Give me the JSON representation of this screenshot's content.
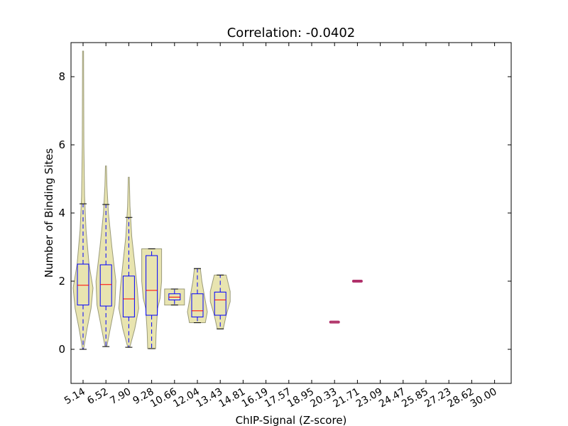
{
  "chart_data": {
    "type": "violin-box",
    "title": "Correlation: -0.0402",
    "xlabel": "ChIP-Signal (Z-score)",
    "ylabel": "Number of Binding Sites",
    "categories": [
      "5.14",
      "6.52",
      "7.90",
      "9.28",
      "10.66",
      "12.04",
      "13.43",
      "14.81",
      "16.19",
      "17.57",
      "18.95",
      "20.33",
      "21.71",
      "23.09",
      "24.47",
      "25.85",
      "27.23",
      "28.62",
      "30.00"
    ],
    "ylim": [
      -1,
      9
    ],
    "yticks": [
      0,
      2,
      4,
      6,
      8
    ],
    "groups": [
      {
        "category": "5.14",
        "box": {
          "min": 0.0,
          "q1": 1.3,
          "median": 1.88,
          "q3": 2.5,
          "max": 4.27
        },
        "violin": [
          [
            8.75,
            0.05
          ],
          [
            6.0,
            0.08
          ],
          [
            4.5,
            0.15
          ],
          [
            3.5,
            0.3
          ],
          [
            2.5,
            0.6
          ],
          [
            1.8,
            1.0
          ],
          [
            1.2,
            0.8
          ],
          [
            0.6,
            0.4
          ],
          [
            0.0,
            0.05
          ]
        ]
      },
      {
        "category": "6.52",
        "box": {
          "min": 0.08,
          "q1": 1.27,
          "median": 1.9,
          "q3": 2.48,
          "max": 4.25
        },
        "violin": [
          [
            5.38,
            0.05
          ],
          [
            4.8,
            0.1
          ],
          [
            4.0,
            0.25
          ],
          [
            3.0,
            0.6
          ],
          [
            2.0,
            1.0
          ],
          [
            1.3,
            0.9
          ],
          [
            0.7,
            0.5
          ],
          [
            0.1,
            0.1
          ]
        ]
      },
      {
        "category": "7.90",
        "box": {
          "min": 0.06,
          "q1": 0.95,
          "median": 1.48,
          "q3": 2.15,
          "max": 3.87
        },
        "violin": [
          [
            5.05,
            0.05
          ],
          [
            4.2,
            0.12
          ],
          [
            3.3,
            0.3
          ],
          [
            2.5,
            0.6
          ],
          [
            1.8,
            0.85
          ],
          [
            1.2,
            1.0
          ],
          [
            0.6,
            0.6
          ],
          [
            0.06,
            0.1
          ]
        ]
      },
      {
        "category": "9.28",
        "box": {
          "min": 0.02,
          "q1": 1.0,
          "median": 1.73,
          "q3": 2.75,
          "max": 2.95
        },
        "violin": [
          [
            2.95,
            1.0
          ],
          [
            2.0,
            1.0
          ],
          [
            1.5,
            0.85
          ],
          [
            1.2,
            0.6
          ],
          [
            0.5,
            0.45
          ],
          [
            0.02,
            0.4
          ]
        ]
      },
      {
        "category": "10.66",
        "box": {
          "min": 1.3,
          "q1": 1.45,
          "median": 1.53,
          "q3": 1.63,
          "max": 1.77
        },
        "violin": [
          [
            1.77,
            1.0
          ],
          [
            1.3,
            1.0
          ]
        ]
      },
      {
        "category": "12.04",
        "box": {
          "min": 0.78,
          "q1": 0.95,
          "median": 1.13,
          "q3": 1.63,
          "max": 2.37
        },
        "violin": [
          [
            2.37,
            0.3
          ],
          [
            2.0,
            0.45
          ],
          [
            1.5,
            0.75
          ],
          [
            1.1,
            1.0
          ],
          [
            0.78,
            0.8
          ]
        ]
      },
      {
        "category": "13.43",
        "box": {
          "min": 0.6,
          "q1": 1.0,
          "median": 1.45,
          "q3": 1.68,
          "max": 2.18
        },
        "violin": [
          [
            2.18,
            0.6
          ],
          [
            1.7,
            1.0
          ],
          [
            1.4,
            1.0
          ],
          [
            1.0,
            0.6
          ],
          [
            0.6,
            0.3
          ]
        ]
      },
      {
        "category": "20.33",
        "box": {
          "min": 0.8,
          "q1": 0.8,
          "median": 0.8,
          "q3": 0.8,
          "max": 0.8
        },
        "violin": [
          [
            0.8,
            1.0
          ]
        ]
      },
      {
        "category": "21.71",
        "box": {
          "min": 2.0,
          "q1": 2.0,
          "median": 2.0,
          "q3": 2.0,
          "max": 2.0
        },
        "violin": [
          [
            2.0,
            1.0
          ]
        ]
      }
    ],
    "grid": false,
    "legend": "none",
    "colors": {
      "violin_fill": "#e8e4b0",
      "violin_edge": "#9a9a7a",
      "box": "#0000ff",
      "median": "#ff0000",
      "whisker": "#0000ff",
      "cap": "#000000"
    }
  }
}
